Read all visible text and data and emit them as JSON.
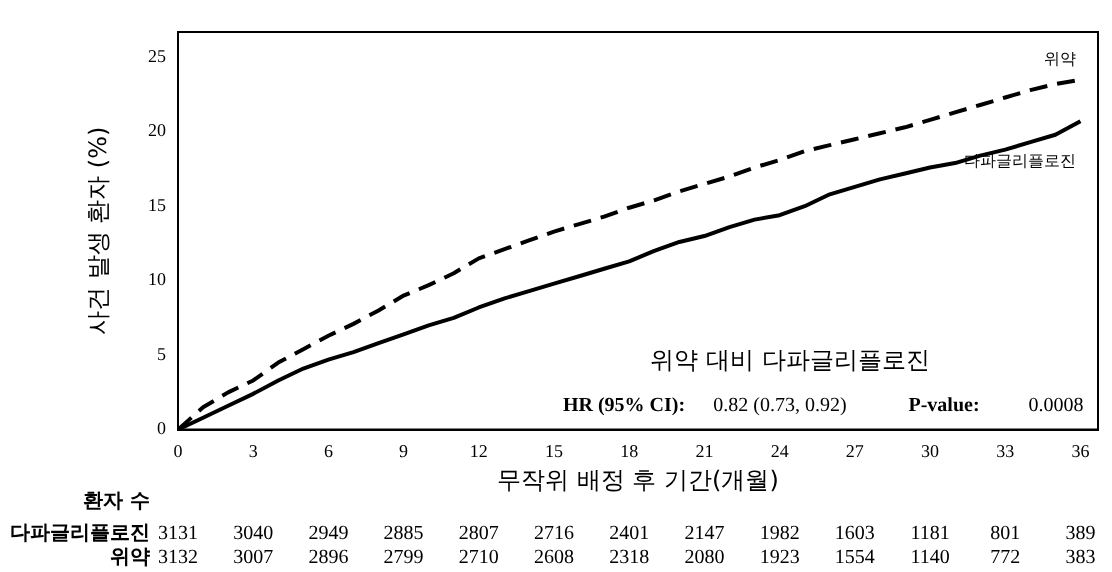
{
  "chart_data": {
    "type": "line",
    "xlabel": "무작위 배정 후 기간(개월)",
    "ylabel": "사건 발생 환자 (%)",
    "x": [
      0,
      1,
      2,
      3,
      4,
      5,
      6,
      7,
      8,
      9,
      10,
      11,
      12,
      13,
      14,
      15,
      16,
      17,
      18,
      19,
      20,
      21,
      22,
      23,
      24,
      25,
      26,
      27,
      28,
      29,
      30,
      31,
      32,
      33,
      34,
      35,
      36
    ],
    "xlim": [
      0,
      36.7
    ],
    "xticks": [
      0,
      3,
      6,
      9,
      12,
      15,
      18,
      21,
      24,
      27,
      30,
      33,
      36
    ],
    "ylim": [
      0,
      26.7
    ],
    "yticks": [
      0,
      5,
      10,
      15,
      20,
      25
    ],
    "grid": false,
    "legend": false,
    "marker": "none",
    "series": [
      {
        "name": "위약",
        "color": "#000000",
        "line_style": "dashed",
        "values": [
          0,
          1.5,
          2.5,
          3.3,
          4.5,
          5.4,
          6.3,
          7.1,
          8.0,
          9.0,
          9.7,
          10.5,
          11.5,
          12.1,
          12.7,
          13.3,
          13.8,
          14.3,
          14.9,
          15.4,
          16.0,
          16.5,
          17.0,
          17.6,
          18.1,
          18.7,
          19.1,
          19.5,
          19.9,
          20.3,
          20.8,
          21.3,
          21.8,
          22.3,
          22.8,
          23.2,
          23.5
        ]
      },
      {
        "name": "다파글리플로진",
        "color": "#000000",
        "line_style": "solid",
        "values": [
          0,
          0.8,
          1.6,
          2.4,
          3.3,
          4.1,
          4.7,
          5.2,
          5.8,
          6.4,
          7.0,
          7.5,
          8.2,
          8.8,
          9.3,
          9.8,
          10.3,
          10.8,
          11.3,
          12.0,
          12.6,
          13.0,
          13.6,
          14.1,
          14.4,
          15.0,
          15.8,
          16.3,
          16.8,
          17.2,
          17.6,
          17.9,
          18.4,
          18.8,
          19.3,
          19.8,
          20.7
        ]
      }
    ],
    "annotations": [
      "위약 대비 다파글리플로진",
      "HR (95% CI):",
      "0.82 (0.73, 0.92)",
      "P-value:",
      "0.0008",
      "환자 수",
      "다파글리플로진",
      "3131",
      "3040",
      "2949",
      "2885",
      "2807",
      "2716",
      "2401",
      "2147",
      "1982",
      "1603",
      "1181",
      "801",
      "389",
      "위약",
      "3132",
      "3007",
      "2896",
      "2799",
      "2710",
      "2608",
      "2318",
      "2080",
      "1923",
      "1554",
      "1140",
      "772",
      "383"
    ]
  }
}
